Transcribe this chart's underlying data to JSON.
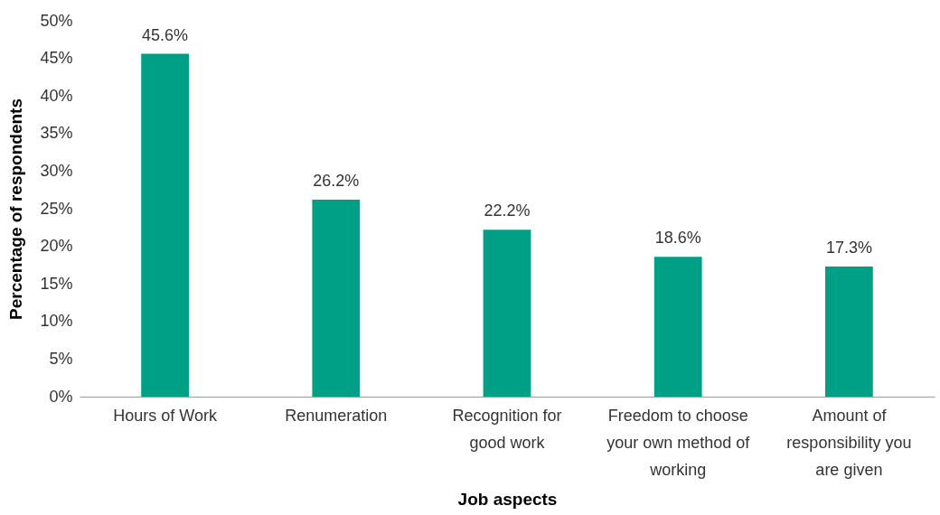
{
  "chart_data": {
    "type": "bar",
    "xlabel": "Job aspects",
    "ylabel": "Percentage of respondents",
    "categories": [
      "Hours of Work",
      "Renumeration",
      "Recognition for good work",
      "Freedom to choose your own method of working",
      "Amount of responsibility you are given"
    ],
    "values": [
      45.6,
      26.2,
      22.2,
      18.6,
      17.3
    ],
    "color": "#00a087",
    "ylim": [
      0,
      50
    ],
    "yticks": [
      {
        "value": 0,
        "label": "0%"
      },
      {
        "value": 5,
        "label": "5%"
      },
      {
        "value": 10,
        "label": "10%"
      },
      {
        "value": 15,
        "label": "15%"
      },
      {
        "value": 20,
        "label": "20%"
      },
      {
        "value": 25,
        "label": "25%"
      },
      {
        "value": 30,
        "label": "30%"
      },
      {
        "value": 35,
        "label": "35%"
      },
      {
        "value": 40,
        "label": "40%"
      },
      {
        "value": 45,
        "label": "45%"
      },
      {
        "value": 50,
        "label": "50%"
      }
    ],
    "value_labels": [
      "45.6%",
      "26.2%",
      "22.2%",
      "18.6%",
      "17.3%"
    ],
    "grid": false
  }
}
